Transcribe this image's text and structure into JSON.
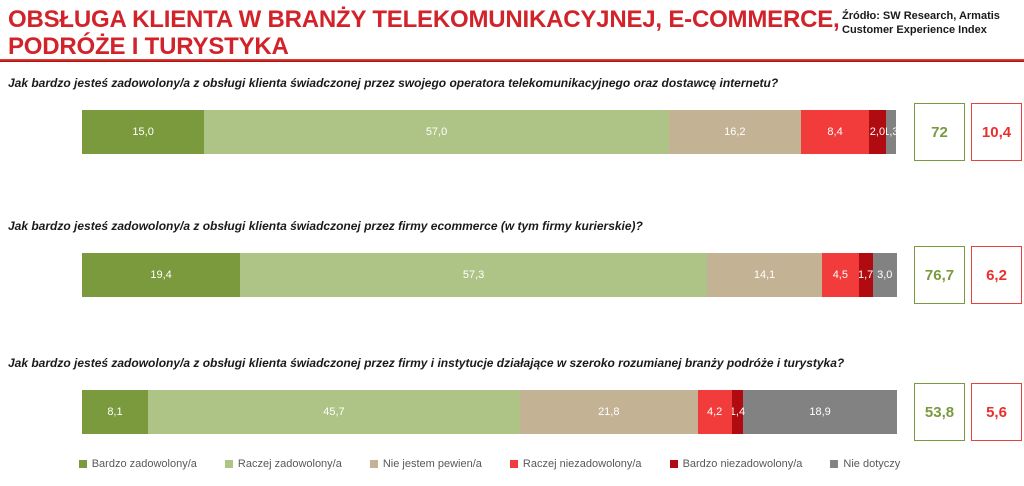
{
  "header": {
    "title": "OBSŁUGA KLIENTA W BRANŻY TELEKOMUNIKACYJNEJ, E-COMMERCE, PODRÓŻE I TURYSTYKA",
    "source_line1": "Źródło: SW Research, Armatis",
    "source_line2": "Customer Experience Index"
  },
  "colors": {
    "title_red": "#D2232A",
    "positive_accent": "#7A9A3D",
    "negative_accent": "#E8302E"
  },
  "chart_data": {
    "type": "bar",
    "variant": "horizontal-stacked-100",
    "unit": "%",
    "legend_position": "bottom",
    "categories": [
      "Jak bardzo jesteś zadowolony/a z obsługi klienta świadczonej przez swojego operatora telekomunikacyjnego oraz dostawcę internetu?",
      "Jak bardzo jesteś zadowolony/a z obsługi klienta świadczonej przez firmy ecommerce (w tym firmy kurierskie)?",
      "Jak bardzo jesteś zadowolony/a z obsługi klienta świadczonej przez firmy i instytucje działające w szeroko rozumianej branży podróże i turystyka?"
    ],
    "series": [
      {
        "name": "Bardzo zadowolony/a",
        "color": "#7A9A3D",
        "values": [
          15.0,
          19.4,
          8.1
        ],
        "labels": [
          "15,0",
          "19,4",
          "8,1"
        ]
      },
      {
        "name": "Raczej zadowolony/a",
        "color": "#AEC487",
        "values": [
          57.0,
          57.3,
          45.7
        ],
        "labels": [
          "57,0",
          "57,3",
          "45,7"
        ]
      },
      {
        "name": "Nie jestem pewien/a",
        "color": "#C4B294",
        "values": [
          16.2,
          14.1,
          21.8
        ],
        "labels": [
          "16,2",
          "14,1",
          "21,8"
        ]
      },
      {
        "name": "Raczej niezadowolony/a",
        "color": "#F23C3C",
        "values": [
          8.4,
          4.5,
          4.2
        ],
        "labels": [
          "8,4",
          "4,5",
          "4,2"
        ]
      },
      {
        "name": "Bardzo niezadowolony/a",
        "color": "#B00B10",
        "values": [
          2.0,
          1.7,
          1.4
        ],
        "labels": [
          "2,0",
          "1,7",
          "1,4"
        ]
      },
      {
        "name": "Nie dotyczy",
        "color": "#828282",
        "values": [
          1.3,
          3.0,
          18.9
        ],
        "labels": [
          "1,3",
          "3,0",
          "18,9"
        ]
      }
    ],
    "summary_positive": {
      "values": [
        72,
        76.7,
        53.8
      ],
      "labels": [
        "72",
        "76,7",
        "53,8"
      ]
    },
    "summary_negative": {
      "values": [
        10.4,
        6.2,
        5.6
      ],
      "labels": [
        "10,4",
        "6,2",
        "5,6"
      ]
    }
  }
}
